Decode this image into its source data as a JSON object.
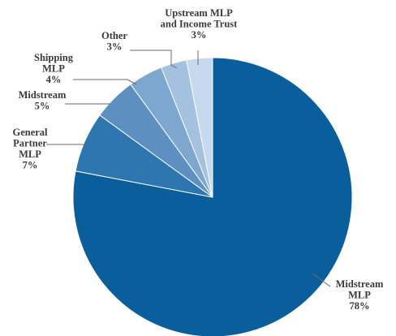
{
  "chart_data": {
    "type": "pie",
    "title": "",
    "start": "top, clockwise",
    "slices": [
      {
        "name": [
          "Midstream",
          "MLP"
        ],
        "value_label": "78%",
        "value": 78,
        "color": "#0a5e9c"
      },
      {
        "name": [
          "General",
          "Partner",
          "MLP"
        ],
        "value_label": "7%",
        "value": 7,
        "color": "#2e76b0"
      },
      {
        "name": [
          "Midstream"
        ],
        "value_label": "5%",
        "value": 5,
        "color": "#5d8fc0"
      },
      {
        "name": [
          "Shipping",
          "MLP"
        ],
        "value_label": "4%",
        "value": 4,
        "color": "#7ea7d0"
      },
      {
        "name": [
          "Other"
        ],
        "value_label": "3%",
        "value": 3,
        "color": "#a4c1e0"
      },
      {
        "name": [
          "Upstream MLP",
          "and Income Trust"
        ],
        "value_label": "3%",
        "value": 3,
        "color": "#c7d9ee"
      }
    ]
  }
}
